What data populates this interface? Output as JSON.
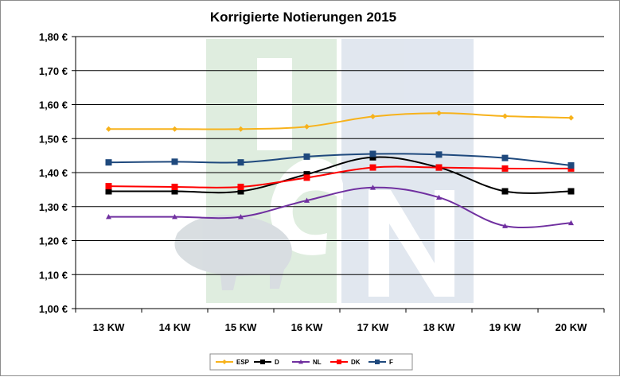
{
  "chart_data": {
    "type": "line",
    "title": "Korrigierte Notierungen 2015",
    "xlabel": "",
    "ylabel": "",
    "categories": [
      "13 KW",
      "14 KW",
      "15 KW",
      "16 KW",
      "17 KW",
      "18 KW",
      "19 KW",
      "20 KW"
    ],
    "y_ticks": [
      "1,00 €",
      "1,10 €",
      "1,20 €",
      "1,30 €",
      "1,40 €",
      "1,50 €",
      "1,60 €",
      "1,70 €",
      "1,80 €"
    ],
    "ylim": [
      1.0,
      1.8
    ],
    "grid": "horizontal",
    "legend_position": "bottom",
    "series": [
      {
        "name": "ESP",
        "color": "#f7b21b",
        "marker": "diamond",
        "values": [
          1.528,
          1.528,
          1.528,
          1.535,
          1.565,
          1.575,
          1.566,
          1.561
        ]
      },
      {
        "name": "D",
        "color": "#000000",
        "marker": "square",
        "values": [
          1.345,
          1.345,
          1.345,
          1.395,
          1.445,
          1.415,
          1.345,
          1.345
        ]
      },
      {
        "name": "NL",
        "color": "#7030a0",
        "marker": "triangle",
        "values": [
          1.27,
          1.27,
          1.27,
          1.318,
          1.356,
          1.327,
          1.243,
          1.252
        ]
      },
      {
        "name": "DK",
        "color": "#ff0000",
        "marker": "square",
        "values": [
          1.36,
          1.358,
          1.358,
          1.385,
          1.415,
          1.415,
          1.412,
          1.412
        ]
      },
      {
        "name": "F",
        "color": "#1f497d",
        "marker": "square",
        "values": [
          1.43,
          1.432,
          1.43,
          1.447,
          1.455,
          1.453,
          1.443,
          1.421
        ]
      }
    ]
  }
}
